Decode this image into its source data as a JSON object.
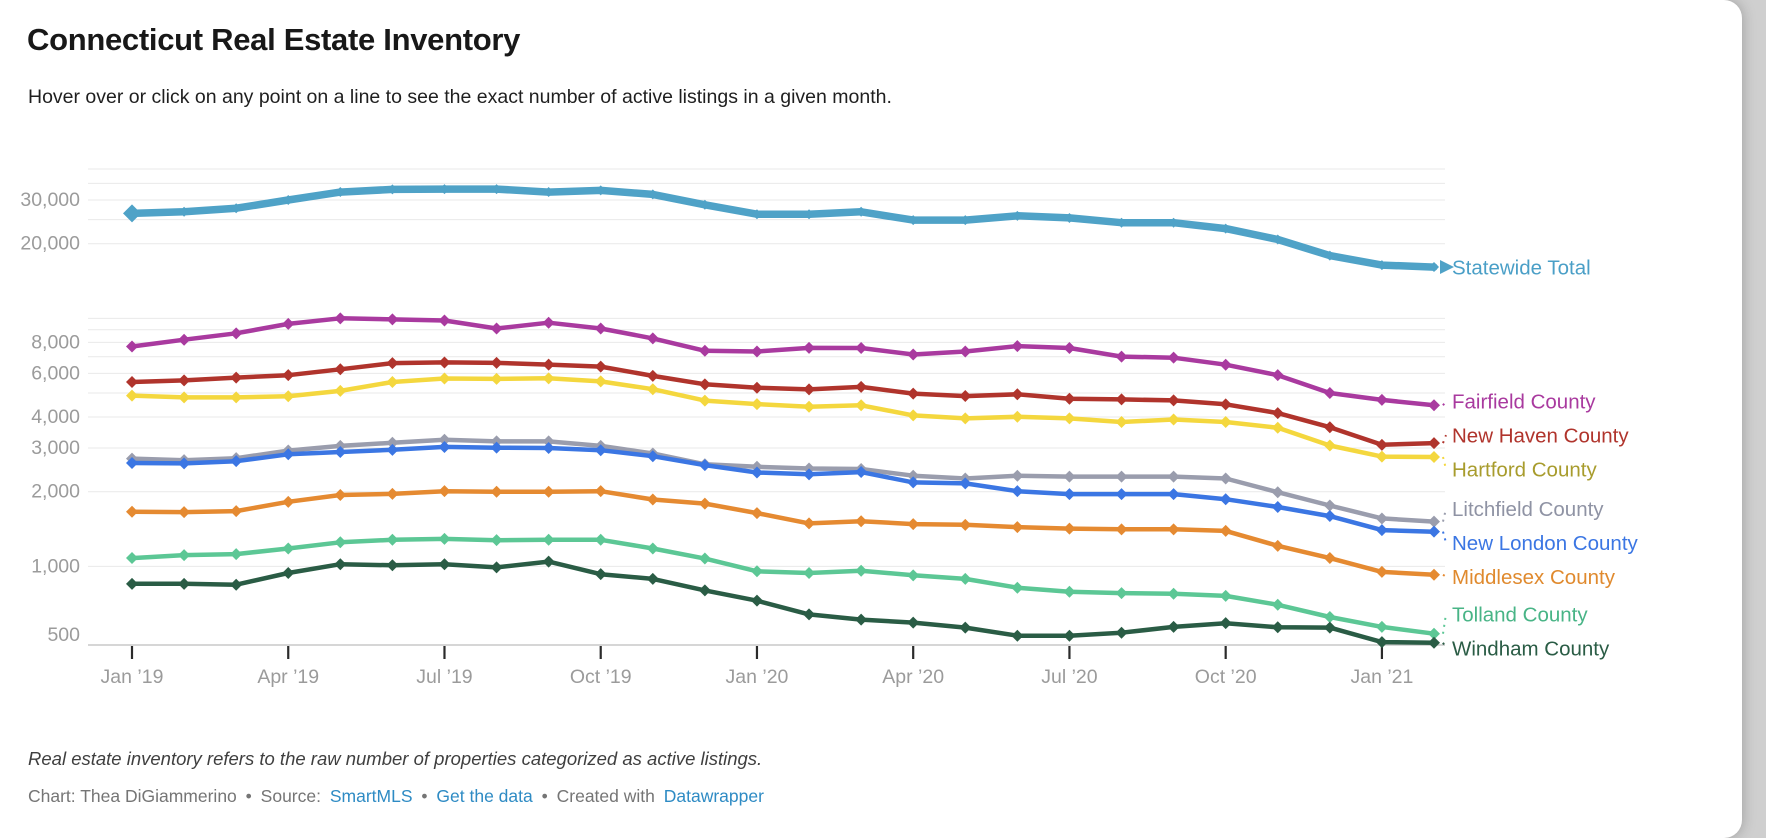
{
  "header": {
    "title": "Connecticut Real Estate Inventory",
    "subtitle": "Hover over or click on any point on a line to see the exact number of active listings in a given month."
  },
  "footer": {
    "note": "Real estate inventory refers to the raw number of properties categorized as active listings.",
    "credit_prefix": "Chart: Thea DiGiammerino",
    "separator": "•",
    "source_label": "Source:",
    "source_link": "SmartMLS",
    "data_link": "Get the data",
    "created_label": "Created with",
    "tool_link": "Datawrapper"
  },
  "colors": {
    "axis_text": "#9b9b9b",
    "gridline": "#e9e9e9",
    "axis_line": "#c9c9c9",
    "tick_mark": "#2b2b2b",
    "link": "#2e8bc4"
  },
  "chart_data": {
    "type": "line",
    "yscale": "log",
    "ylim": [
      500,
      43000
    ],
    "grid": true,
    "legend_position": "right-of-line-ends",
    "x": [
      "Jan 2019",
      "Feb 2019",
      "Mar 2019",
      "Apr 2019",
      "May 2019",
      "Jun 2019",
      "Jul 2019",
      "Aug 2019",
      "Sep 2019",
      "Oct 2019",
      "Nov 2019",
      "Dec 2019",
      "Jan 2020",
      "Feb 2020",
      "Mar 2020",
      "Apr 2020",
      "May 2020",
      "Jun 2020",
      "Jul 2020",
      "Aug 2020",
      "Sep 2020",
      "Oct 2020",
      "Nov 2020",
      "Dec 2020",
      "Jan 2021",
      "Feb 2021"
    ],
    "x_tick_positions": [
      0,
      3,
      6,
      9,
      12,
      15,
      18,
      21,
      24
    ],
    "x_tick_labels": [
      "Jan ’19",
      "Apr ’19",
      "Jul ’19",
      "Oct ’19",
      "Jan ’20",
      "Apr ’20",
      "Jul ’20",
      "Oct ’20",
      "Jan ’21"
    ],
    "y_labeled_ticks": [
      30000,
      20000,
      8000,
      6000,
      4000,
      3000,
      2000,
      1000,
      500
    ],
    "y_minor_gridlines": [
      40000,
      35000,
      30000,
      25000,
      20000,
      10000,
      9000,
      8000,
      7000,
      6000,
      5000,
      4000,
      3000,
      2000,
      1000
    ],
    "ylabel": "",
    "xlabel": "",
    "series": [
      {
        "name": "Statewide Total",
        "slug": "statewide-total",
        "color": "#4fa2c7",
        "label_color": "#4a9fc7",
        "line_width": 7.5,
        "marker": "diamond",
        "big_start": true,
        "arrow_end": true,
        "values": [
          26500,
          26900,
          27800,
          30000,
          32300,
          33100,
          33200,
          33200,
          32300,
          32800,
          31600,
          28700,
          26300,
          26300,
          26900,
          24900,
          24900,
          25900,
          25400,
          24300,
          24300,
          23000,
          20800,
          17900,
          16400,
          16100
        ]
      },
      {
        "name": "Fairfield County",
        "slug": "fairfield-county",
        "color": "#a93a9f",
        "label_color": "#a93a9f",
        "line_width": 4.5,
        "marker": "diamond",
        "values": [
          7700,
          8200,
          8700,
          9500,
          10000,
          9900,
          9800,
          9100,
          9600,
          9100,
          8300,
          7400,
          7350,
          7600,
          7590,
          7150,
          7350,
          7730,
          7590,
          7010,
          6940,
          6500,
          5900,
          5000,
          4690,
          4460
        ]
      },
      {
        "name": "New Haven County",
        "slug": "new-haven-county",
        "color": "#b0342c",
        "label_color": "#b0342c",
        "line_width": 4.5,
        "marker": "diamond",
        "values": [
          5540,
          5620,
          5770,
          5900,
          6230,
          6600,
          6640,
          6610,
          6510,
          6390,
          5860,
          5420,
          5250,
          5170,
          5290,
          4970,
          4860,
          4940,
          4740,
          4710,
          4670,
          4500,
          4150,
          3640,
          3090,
          3140
        ]
      },
      {
        "name": "Hartford County",
        "slug": "hartford-county",
        "color": "#f4d73e",
        "label_color": "#a89c2d",
        "line_width": 4.5,
        "marker": "diamond",
        "values": [
          4880,
          4800,
          4800,
          4850,
          5100,
          5540,
          5720,
          5700,
          5730,
          5570,
          5180,
          4660,
          4510,
          4400,
          4460,
          4060,
          3950,
          4010,
          3950,
          3820,
          3910,
          3820,
          3620,
          3070,
          2770,
          2760
        ]
      },
      {
        "name": "Litchfield County",
        "slug": "litchfield-county",
        "color": "#9a9dad",
        "label_color": "#8f93a4",
        "line_width": 4.5,
        "marker": "diamond",
        "values": [
          2720,
          2680,
          2730,
          2930,
          3060,
          3150,
          3240,
          3190,
          3190,
          3060,
          2850,
          2580,
          2520,
          2480,
          2470,
          2320,
          2260,
          2320,
          2300,
          2300,
          2300,
          2260,
          1990,
          1760,
          1560,
          1515
        ]
      },
      {
        "name": "New London County",
        "slug": "new-london-county",
        "color": "#3b76e3",
        "label_color": "#3b76e3",
        "line_width": 4.5,
        "marker": "diamond",
        "values": [
          2610,
          2600,
          2655,
          2830,
          2890,
          2950,
          3030,
          3010,
          3000,
          2940,
          2780,
          2560,
          2390,
          2350,
          2400,
          2180,
          2160,
          2010,
          1955,
          1955,
          1955,
          1865,
          1735,
          1595,
          1400,
          1380
        ]
      },
      {
        "name": "Middlesex County",
        "slug": "middlesex-county",
        "color": "#e58a31",
        "label_color": "#e08a2e",
        "line_width": 4.5,
        "marker": "diamond",
        "values": [
          1660,
          1655,
          1670,
          1820,
          1940,
          1960,
          2010,
          2000,
          2000,
          2010,
          1860,
          1790,
          1640,
          1490,
          1520,
          1480,
          1470,
          1440,
          1420,
          1410,
          1410,
          1390,
          1210,
          1080,
          950,
          925
        ]
      },
      {
        "name": "Tolland County",
        "slug": "tolland-county",
        "color": "#5cc795",
        "label_color": "#48b486",
        "line_width": 4.5,
        "marker": "diamond",
        "values": [
          1080,
          1110,
          1120,
          1180,
          1250,
          1280,
          1290,
          1275,
          1280,
          1280,
          1180,
          1075,
          955,
          940,
          960,
          920,
          890,
          820,
          790,
          780,
          775,
          760,
          700,
          625,
          570,
          535
        ]
      },
      {
        "name": "Windham County",
        "slug": "windham-county",
        "color": "#2a5c45",
        "label_color": "#2a5c45",
        "line_width": 4.5,
        "marker": "diamond",
        "values": [
          850,
          850,
          843,
          940,
          1020,
          1010,
          1020,
          990,
          1045,
          930,
          890,
          800,
          727,
          640,
          610,
          593,
          566,
          525,
          525,
          540,
          570,
          590,
          568,
          566,
          495,
          492
        ]
      }
    ]
  }
}
